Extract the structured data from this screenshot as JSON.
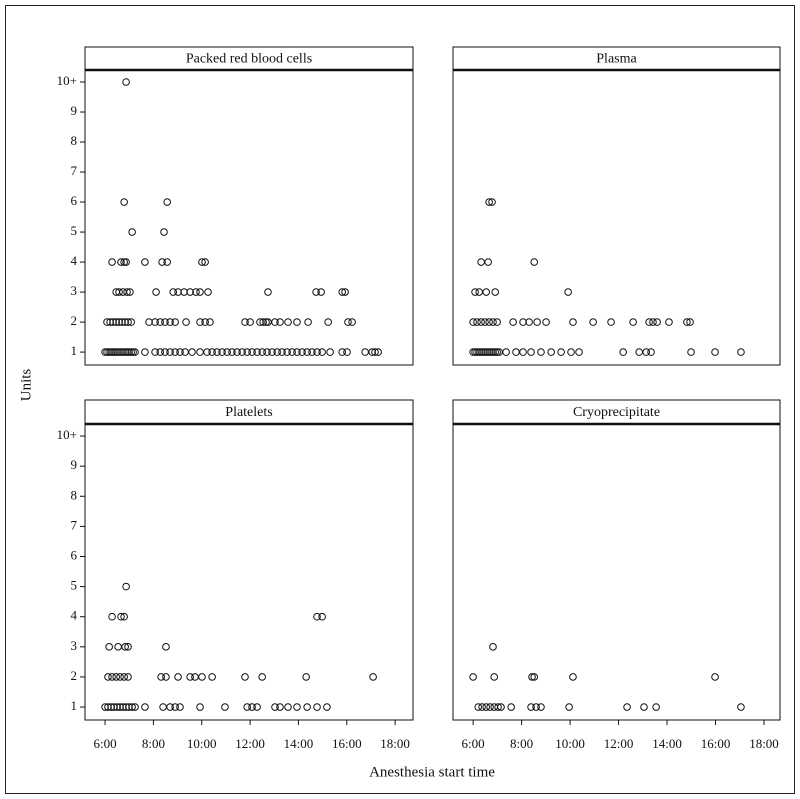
{
  "axis_labels": {
    "x": "Anesthesia start time",
    "y": "Units"
  },
  "chart_data": [
    {
      "type": "scatter",
      "title": "Packed red blood cells",
      "x": [
        6.87,
        6.79,
        8.57,
        7.12,
        8.44,
        6.29,
        6.66,
        6.79,
        6.87,
        7.65,
        8.36,
        8.57,
        10.01,
        10.14,
        6.46,
        6.58,
        6.74,
        6.91,
        7.03,
        8.11,
        8.82,
        9.02,
        9.27,
        9.52,
        9.76,
        9.93,
        10.26,
        12.74,
        14.73,
        14.94,
        15.81,
        15.93,
        6.08,
        6.21,
        6.33,
        6.46,
        6.58,
        6.7,
        6.83,
        6.95,
        7.08,
        7.82,
        8.07,
        8.28,
        8.48,
        8.69,
        8.9,
        9.35,
        9.93,
        10.14,
        10.34,
        11.79,
        12.0,
        12.41,
        12.54,
        12.66,
        12.74,
        13.03,
        13.24,
        13.57,
        13.94,
        14.4,
        15.23,
        16.05,
        16.22,
        6.0,
        6.08,
        6.17,
        6.25,
        6.33,
        6.41,
        6.5,
        6.58,
        6.66,
        6.74,
        6.83,
        6.91,
        6.99,
        7.08,
        7.16,
        7.24,
        7.65,
        8.07,
        8.28,
        8.48,
        8.69,
        8.9,
        9.1,
        9.31,
        9.6,
        9.93,
        10.22,
        10.43,
        10.63,
        10.84,
        11.05,
        11.25,
        11.46,
        11.67,
        11.88,
        12.08,
        12.29,
        12.5,
        12.7,
        12.91,
        13.12,
        13.32,
        13.53,
        13.74,
        13.94,
        14.15,
        14.36,
        14.56,
        14.77,
        14.98,
        15.31,
        15.81,
        16.01,
        16.76,
        17.05,
        17.17,
        17.3
      ],
      "values": [
        10,
        6,
        6,
        5,
        5,
        4,
        4,
        4,
        4,
        4,
        4,
        4,
        4,
        4,
        3,
        3,
        3,
        3,
        3,
        3,
        3,
        3,
        3,
        3,
        3,
        3,
        3,
        3,
        3,
        3,
        3,
        3,
        2,
        2,
        2,
        2,
        2,
        2,
        2,
        2,
        2,
        2,
        2,
        2,
        2,
        2,
        2,
        2,
        2,
        2,
        2,
        2,
        2,
        2,
        2,
        2,
        2,
        2,
        2,
        2,
        2,
        2,
        2,
        2,
        2,
        1,
        1,
        1,
        1,
        1,
        1,
        1,
        1,
        1,
        1,
        1,
        1,
        1,
        1,
        1,
        1,
        1,
        1,
        1,
        1,
        1,
        1,
        1,
        1,
        1,
        1,
        1,
        1,
        1,
        1,
        1,
        1,
        1,
        1,
        1,
        1,
        1,
        1,
        1,
        1,
        1,
        1,
        1,
        1,
        1,
        1,
        1,
        1,
        1,
        1,
        1,
        1,
        1,
        1,
        1,
        1,
        1
      ],
      "xlim": [
        5.17,
        18.74
      ],
      "ylim": [
        0.57,
        10.4
      ],
      "yticks": [
        1,
        2,
        3,
        4,
        5,
        6,
        7,
        8,
        9,
        {
          "value": 10,
          "label": "10+"
        }
      ]
    },
    {
      "type": "scatter",
      "title": "Plasma",
      "x": [
        6.66,
        6.78,
        6.33,
        6.62,
        8.52,
        6.08,
        6.25,
        6.54,
        6.91,
        9.92,
        6.0,
        6.16,
        6.33,
        6.49,
        6.66,
        6.82,
        6.99,
        7.65,
        8.06,
        8.31,
        8.64,
        9.01,
        10.12,
        10.95,
        11.69,
        12.6,
        13.26,
        13.42,
        13.59,
        14.08,
        14.82,
        14.95,
        6.0,
        6.08,
        6.16,
        6.25,
        6.33,
        6.41,
        6.49,
        6.58,
        6.66,
        6.74,
        6.82,
        6.91,
        6.99,
        7.07,
        7.36,
        7.77,
        8.06,
        8.39,
        8.8,
        9.22,
        9.63,
        10.04,
        10.37,
        12.19,
        12.85,
        13.14,
        13.34,
        14.99,
        15.98,
        17.05
      ],
      "values": [
        6,
        6,
        4,
        4,
        4,
        3,
        3,
        3,
        3,
        3,
        2,
        2,
        2,
        2,
        2,
        2,
        2,
        2,
        2,
        2,
        2,
        2,
        2,
        2,
        2,
        2,
        2,
        2,
        2,
        2,
        2,
        2,
        1,
        1,
        1,
        1,
        1,
        1,
        1,
        1,
        1,
        1,
        1,
        1,
        1,
        1,
        1,
        1,
        1,
        1,
        1,
        1,
        1,
        1,
        1,
        1,
        1,
        1,
        1,
        1,
        1,
        1
      ],
      "xlim": [
        5.17,
        18.66
      ],
      "ylim": [
        0.57,
        10.4
      ]
    },
    {
      "type": "scatter",
      "title": "Platelets",
      "x": [
        6.87,
        6.29,
        6.66,
        6.79,
        14.77,
        14.98,
        6.17,
        6.54,
        6.83,
        6.95,
        8.52,
        6.12,
        6.29,
        6.46,
        6.62,
        6.79,
        6.95,
        8.32,
        8.52,
        9.02,
        9.52,
        9.72,
        10.01,
        10.43,
        11.79,
        12.5,
        14.32,
        17.09,
        6.0,
        6.12,
        6.25,
        6.37,
        6.5,
        6.62,
        6.74,
        6.87,
        6.99,
        7.12,
        7.24,
        7.65,
        8.4,
        8.69,
        8.9,
        9.1,
        9.93,
        10.96,
        11.88,
        12.08,
        12.29,
        13.03,
        13.24,
        13.57,
        13.94,
        14.36,
        14.77,
        15.18
      ],
      "values": [
        5,
        4,
        4,
        4,
        4,
        4,
        3,
        3,
        3,
        3,
        3,
        2,
        2,
        2,
        2,
        2,
        2,
        2,
        2,
        2,
        2,
        2,
        2,
        2,
        2,
        2,
        2,
        2,
        1,
        1,
        1,
        1,
        1,
        1,
        1,
        1,
        1,
        1,
        1,
        1,
        1,
        1,
        1,
        1,
        1,
        1,
        1,
        1,
        1,
        1,
        1,
        1,
        1,
        1,
        1,
        1
      ],
      "xlim": [
        5.17,
        18.74
      ],
      "ylim": [
        0.57,
        10.4
      ],
      "xticks": [
        {
          "value": 6,
          "label": "6:00"
        },
        {
          "value": 8,
          "label": "8:00"
        },
        {
          "value": 10,
          "label": "10:00"
        },
        {
          "value": 12,
          "label": "12:00"
        },
        {
          "value": 14,
          "label": "14:00"
        },
        {
          "value": 16,
          "label": "16:00"
        },
        {
          "value": 18,
          "label": "18:00"
        }
      ],
      "yticks": [
        1,
        2,
        3,
        4,
        5,
        6,
        7,
        8,
        9,
        {
          "value": 10,
          "label": "10+"
        }
      ]
    },
    {
      "type": "scatter",
      "title": "Cryoprecipitate",
      "x": [
        6.82,
        6.0,
        6.87,
        8.43,
        8.52,
        10.12,
        15.98,
        6.21,
        6.37,
        6.54,
        6.7,
        6.87,
        7.03,
        7.15,
        7.57,
        8.39,
        8.6,
        8.8,
        9.96,
        12.35,
        13.05,
        13.55,
        17.05
      ],
      "values": [
        3,
        2,
        2,
        2,
        2,
        2,
        2,
        1,
        1,
        1,
        1,
        1,
        1,
        1,
        1,
        1,
        1,
        1,
        1,
        1,
        1,
        1,
        1
      ],
      "xlim": [
        5.17,
        18.66
      ],
      "ylim": [
        0.57,
        10.4
      ],
      "xticks": [
        {
          "value": 6,
          "label": "6:00"
        },
        {
          "value": 8,
          "label": "8:00"
        },
        {
          "value": 10,
          "label": "10:00"
        },
        {
          "value": 12,
          "label": "12:00"
        },
        {
          "value": 14,
          "label": "14:00"
        },
        {
          "value": 16,
          "label": "16:00"
        },
        {
          "value": 18,
          "label": "18:00"
        }
      ]
    }
  ]
}
